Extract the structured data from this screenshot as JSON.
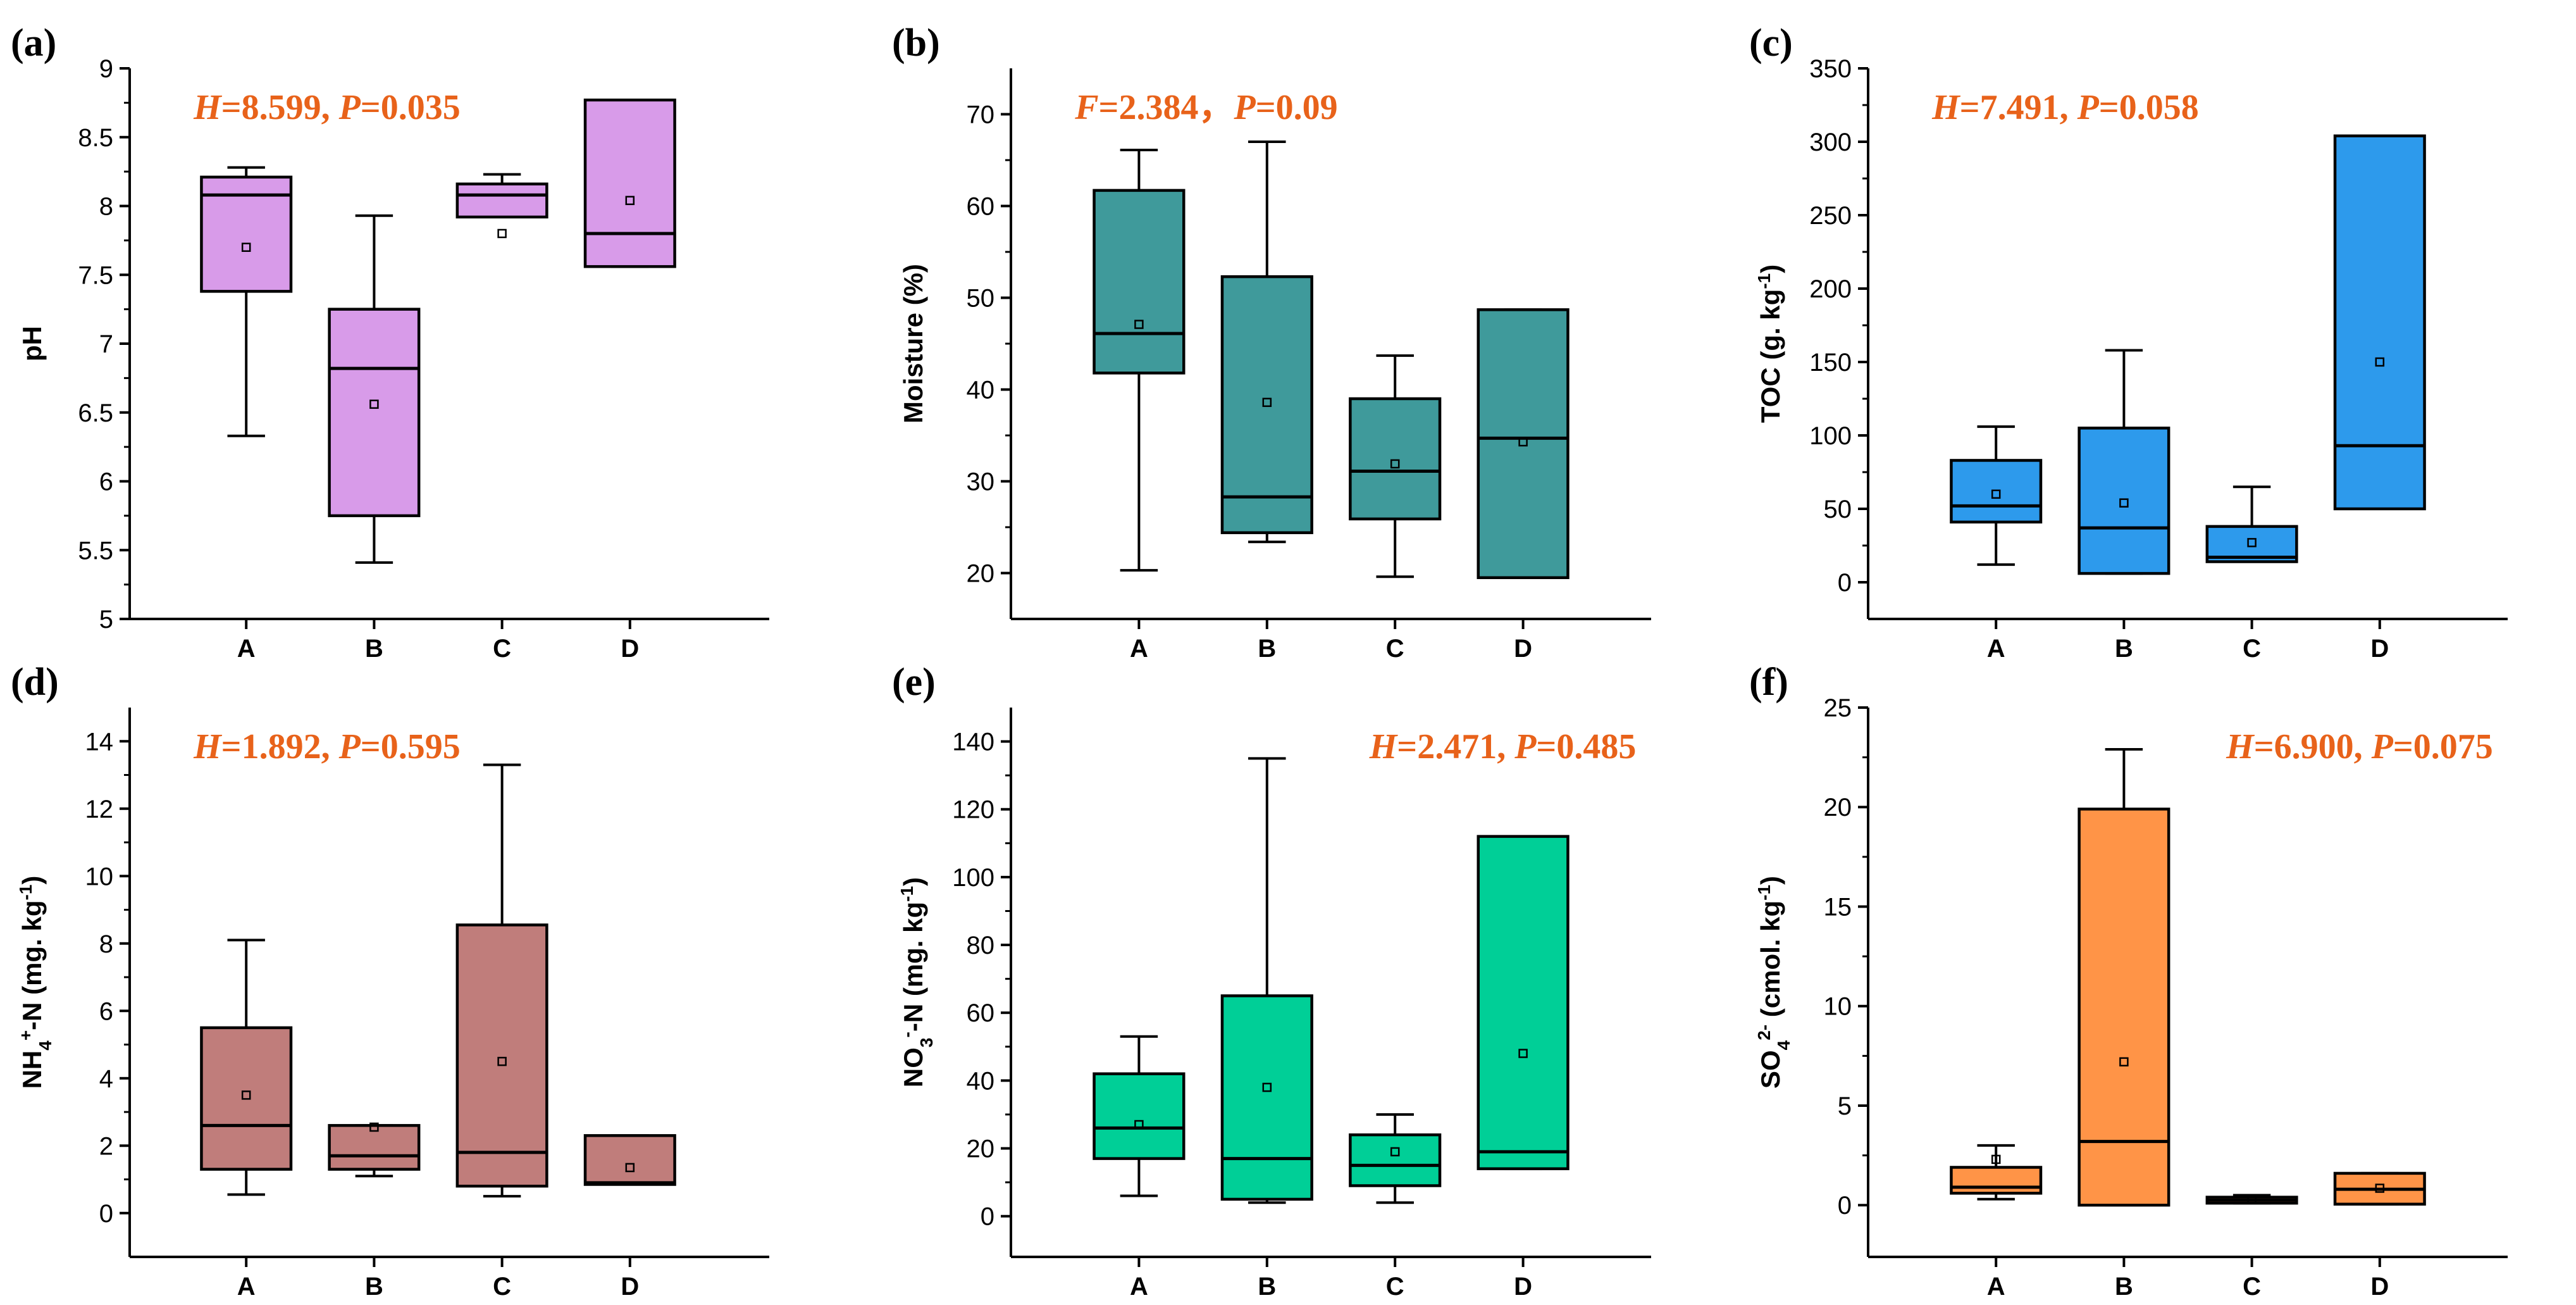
{
  "chart_data": [
    {
      "type": "box",
      "panel": "(a)",
      "stat_html": [
        {
          "t": "H",
          "i": true
        },
        {
          "t": "=8.599, "
        },
        {
          "t": "P",
          "i": true
        },
        {
          "t": "=0.035"
        }
      ],
      "ylabel": [
        {
          "t": "pH"
        }
      ],
      "ylim": [
        5,
        9
      ],
      "yticks": [
        5,
        5.5,
        6,
        6.5,
        7,
        7.5,
        8,
        8.5,
        9
      ],
      "ytick_labels": [
        "5",
        "5.5",
        "6",
        "6.5",
        "7",
        "7.5",
        "8",
        "8.5",
        "9"
      ],
      "categories": [
        "A",
        "B",
        "C",
        "D"
      ],
      "color": "#d89be9",
      "boxes": [
        {
          "min": 6.33,
          "q1": 7.38,
          "median": 8.08,
          "q3": 8.21,
          "max": 8.28,
          "mean": 7.7
        },
        {
          "min": 5.41,
          "q1": 5.75,
          "median": 6.82,
          "q3": 7.25,
          "max": 7.93,
          "mean": 6.56
        },
        {
          "min": 7.92,
          "q1": 7.92,
          "median": 8.08,
          "q3": 8.16,
          "max": 8.23,
          "mean": 7.8
        },
        {
          "min": 7.56,
          "q1": 7.56,
          "median": 7.8,
          "q3": 8.77,
          "max": 8.77,
          "mean": 8.04
        }
      ]
    },
    {
      "type": "box",
      "panel": "(b)",
      "stat_html": [
        {
          "t": "F",
          "i": true
        },
        {
          "t": "=2.384，"
        },
        {
          "t": "P",
          "i": true
        },
        {
          "t": "=0.09"
        }
      ],
      "ylabel": [
        {
          "t": "Moisture (%)"
        }
      ],
      "ylim": [
        15,
        75
      ],
      "yticks": [
        20,
        30,
        40,
        50,
        60,
        70
      ],
      "ytick_labels": [
        "20",
        "30",
        "40",
        "50",
        "60",
        "70"
      ],
      "categories": [
        "A",
        "B",
        "C",
        "D"
      ],
      "color": "#3f9a9b",
      "boxes": [
        {
          "min": 20.3,
          "q1": 41.8,
          "median": 46.1,
          "q3": 61.7,
          "max": 66.1,
          "mean": 47.1
        },
        {
          "min": 23.4,
          "q1": 24.4,
          "median": 28.3,
          "q3": 52.3,
          "max": 67.0,
          "mean": 38.6
        },
        {
          "min": 19.6,
          "q1": 25.9,
          "median": 31.1,
          "q3": 39.0,
          "max": 43.7,
          "mean": 31.9
        },
        {
          "min": 19.5,
          "q1": 19.5,
          "median": 34.7,
          "q3": 48.7,
          "max": 48.7,
          "mean": 34.3
        }
      ]
    },
    {
      "type": "box",
      "panel": "(c)",
      "stat_html": [
        {
          "t": "H",
          "i": true
        },
        {
          "t": "=7.491, "
        },
        {
          "t": "P",
          "i": true
        },
        {
          "t": "=0.058"
        }
      ],
      "ylabel": [
        {
          "t": "TOC (g. kg"
        },
        {
          "t": "-1",
          "sup": true
        },
        {
          "t": ")"
        }
      ],
      "ylim": [
        -25,
        350
      ],
      "yticks": [
        0,
        50,
        100,
        150,
        200,
        250,
        300,
        350
      ],
      "ytick_labels": [
        "0",
        "50",
        "100",
        "150",
        "200",
        "250",
        "300",
        "350"
      ],
      "categories": [
        "A",
        "B",
        "C",
        "D"
      ],
      "color": "#2d9aec",
      "boxes": [
        {
          "min": 12,
          "q1": 41,
          "median": 52,
          "q3": 83,
          "max": 106,
          "mean": 60
        },
        {
          "min": 6,
          "q1": 6,
          "median": 37,
          "q3": 105,
          "max": 158,
          "mean": 54
        },
        {
          "min": 14,
          "q1": 14,
          "median": 17,
          "q3": 38,
          "max": 65,
          "mean": 27
        },
        {
          "min": 50,
          "q1": 50,
          "median": 93,
          "q3": 304,
          "max": 304,
          "mean": 150
        }
      ]
    },
    {
      "type": "box",
      "panel": "(d)",
      "stat_html": [
        {
          "t": "H",
          "i": true
        },
        {
          "t": "=1.892, "
        },
        {
          "t": "P",
          "i": true
        },
        {
          "t": "=0.595"
        }
      ],
      "ylabel": [
        {
          "t": "NH"
        },
        {
          "t": "4",
          "sub": true
        },
        {
          "t": "+",
          "sup": true
        },
        {
          "t": "-N (mg. kg"
        },
        {
          "t": "-1",
          "sup": true
        },
        {
          "t": ")"
        }
      ],
      "ylim": [
        -1.3,
        15
      ],
      "yticks": [
        0,
        2,
        4,
        6,
        8,
        10,
        12,
        14
      ],
      "ytick_labels": [
        "0",
        "2",
        "4",
        "6",
        "8",
        "10",
        "12",
        "14"
      ],
      "categories": [
        "A",
        "B",
        "C",
        "D"
      ],
      "color": "#c07d7b",
      "boxes": [
        {
          "min": 0.55,
          "q1": 1.3,
          "median": 2.6,
          "q3": 5.5,
          "max": 8.1,
          "mean": 3.5
        },
        {
          "min": 1.1,
          "q1": 1.3,
          "median": 1.7,
          "q3": 2.6,
          "max": 2.6,
          "mean": 2.55
        },
        {
          "min": 0.5,
          "q1": 0.8,
          "median": 1.8,
          "q3": 8.55,
          "max": 13.3,
          "mean": 4.5
        },
        {
          "min": 0.85,
          "q1": 0.85,
          "median": 0.9,
          "q3": 2.3,
          "max": 2.3,
          "mean": 1.35
        }
      ]
    },
    {
      "type": "box",
      "panel": "(e)",
      "stat_html": [
        {
          "t": "H",
          "i": true
        },
        {
          "t": "=2.471, "
        },
        {
          "t": "P",
          "i": true
        },
        {
          "t": "=0.485"
        }
      ],
      "ylabel": [
        {
          "t": "NO"
        },
        {
          "t": "3",
          "sub": true
        },
        {
          "t": "-",
          "sup": true
        },
        {
          "t": "-N (mg. kg"
        },
        {
          "t": "-1",
          "sup": true
        },
        {
          "t": ")"
        }
      ],
      "ylim": [
        -12,
        150
      ],
      "yticks": [
        0,
        20,
        40,
        60,
        80,
        100,
        120,
        140
      ],
      "ytick_labels": [
        "0",
        "20",
        "40",
        "60",
        "80",
        "100",
        "120",
        "140"
      ],
      "categories": [
        "A",
        "B",
        "C",
        "D"
      ],
      "color": "#00cf97",
      "boxes": [
        {
          "min": 6,
          "q1": 17,
          "median": 26,
          "q3": 42,
          "max": 53,
          "mean": 27
        },
        {
          "min": 4,
          "q1": 5,
          "median": 17,
          "q3": 65,
          "max": 135,
          "mean": 38
        },
        {
          "min": 4,
          "q1": 9,
          "median": 15,
          "q3": 24,
          "max": 30,
          "mean": 19
        },
        {
          "min": 14,
          "q1": 14,
          "median": 19,
          "q3": 112,
          "max": 112,
          "mean": 48
        }
      ]
    },
    {
      "type": "box",
      "panel": "(f)",
      "stat_html": [
        {
          "t": "H",
          "i": true
        },
        {
          "t": "=6.900, "
        },
        {
          "t": "P",
          "i": true
        },
        {
          "t": "=0.075"
        }
      ],
      "ylabel": [
        {
          "t": "SO"
        },
        {
          "t": "4",
          "sub": true
        },
        {
          "t": "2-",
          "sup": true
        },
        {
          "t": " (cmol. kg"
        },
        {
          "t": "-1",
          "sup": true
        },
        {
          "t": ")"
        }
      ],
      "ylim": [
        -2.6,
        25
      ],
      "yticks": [
        0,
        5,
        10,
        15,
        20,
        25
      ],
      "ytick_labels": [
        "0",
        "5",
        "10",
        "15",
        "20",
        "25"
      ],
      "categories": [
        "A",
        "B",
        "C",
        "D"
      ],
      "color": "#ff9447",
      "boxes": [
        {
          "min": 0.3,
          "q1": 0.6,
          "median": 0.9,
          "q3": 1.9,
          "max": 3.0,
          "mean": 2.3
        },
        {
          "min": 0.0,
          "q1": 0.0,
          "median": 3.2,
          "q3": 19.9,
          "max": 22.9,
          "mean": 7.2
        },
        {
          "min": 0.1,
          "q1": 0.1,
          "median": 0.25,
          "q3": 0.4,
          "max": 0.5,
          "mean": 0.3
        },
        {
          "min": 0.05,
          "q1": 0.05,
          "median": 0.8,
          "q3": 1.6,
          "max": 1.6,
          "mean": 0.85
        }
      ]
    }
  ]
}
